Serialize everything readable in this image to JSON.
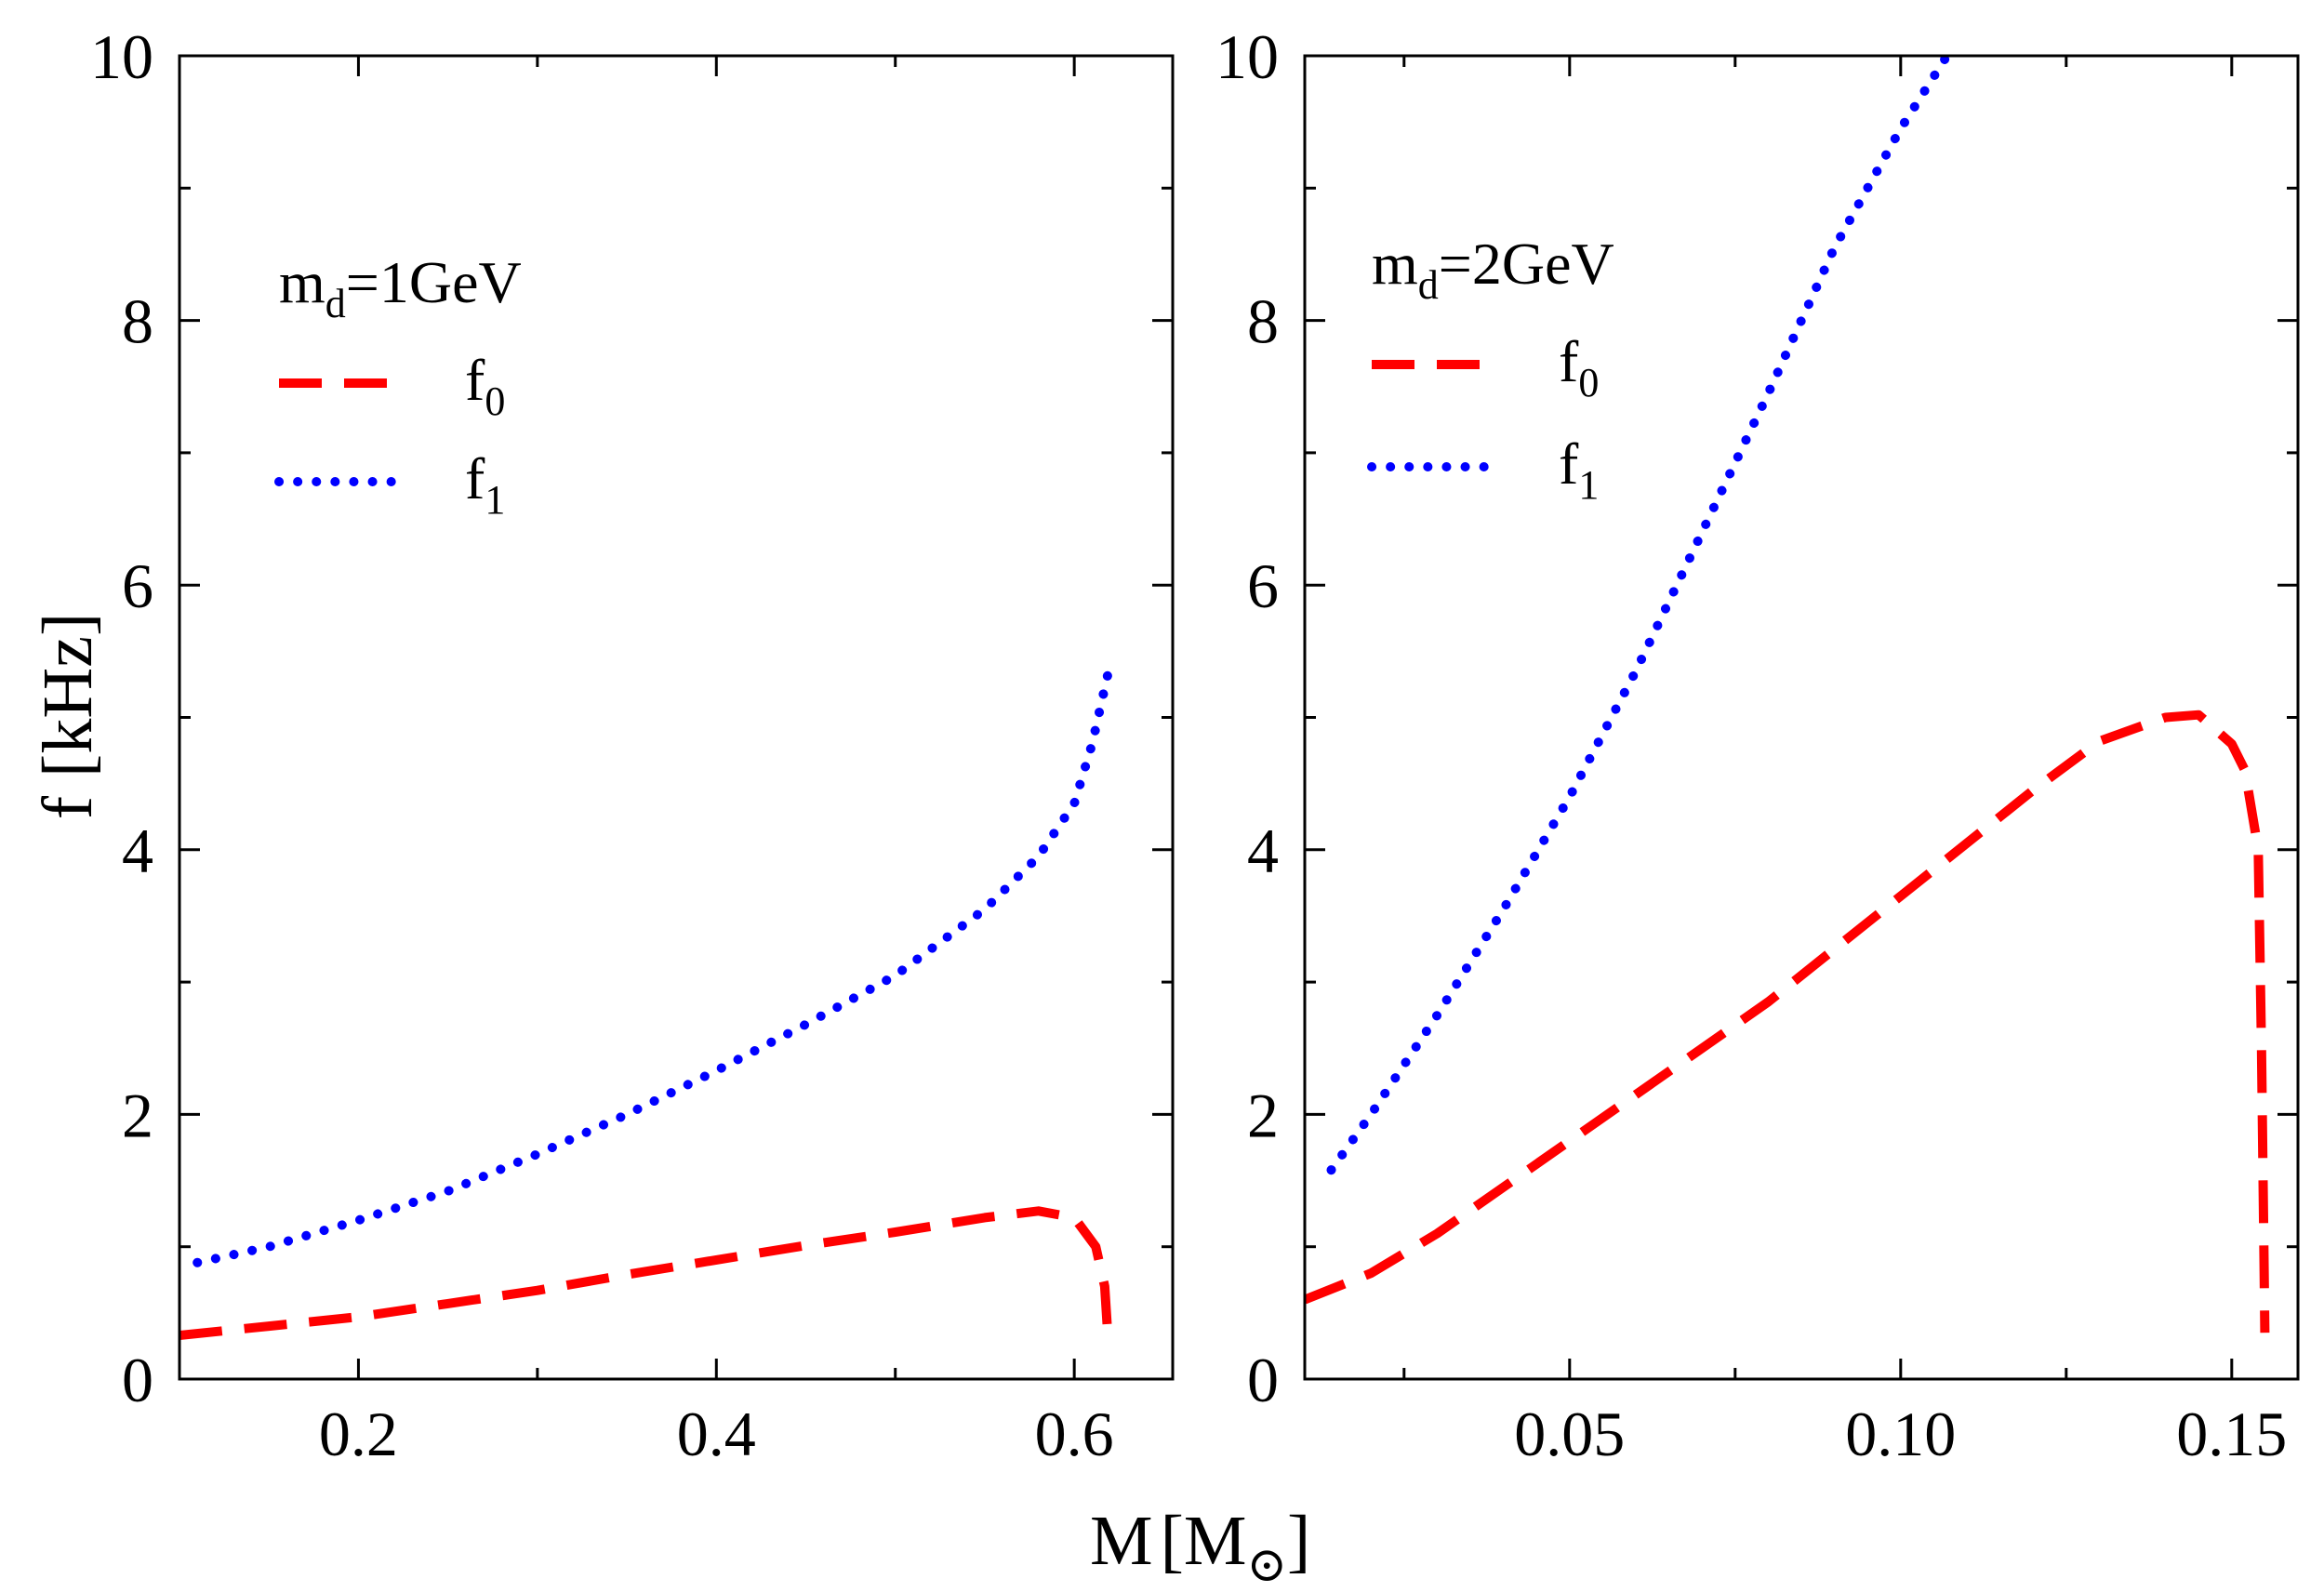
{
  "figure": {
    "xlabel_main": "M",
    "xlabel_unit": "M",
    "xlabel_unit_sub": "⊙",
    "ylabel_main": "f",
    "ylabel_unit": "[kHz]"
  },
  "chart_data": [
    {
      "type": "line",
      "panel": "left",
      "annotation_main": "m",
      "annotation_sub": "d",
      "annotation_rest": "=1GeV",
      "xlabel": "M[M⊙]",
      "ylabel": "f [kHz]",
      "xlim": [
        0.1,
        0.655
      ],
      "ylim": [
        0,
        10
      ],
      "xticks": [
        0.2,
        0.4,
        0.6
      ],
      "xtick_labels": [
        "0.2",
        "0.4",
        "0.6"
      ],
      "xminor": [
        0.1,
        0.3,
        0.5
      ],
      "yticks": [
        0,
        2,
        4,
        6,
        8,
        10
      ],
      "ytick_labels": [
        "0",
        "2",
        "4",
        "6",
        "8",
        "10"
      ],
      "yminor": [
        1,
        3,
        5,
        7,
        9
      ],
      "legend": [
        {
          "main": "f",
          "sub": "0",
          "style": "dashed",
          "color": "#ff0000"
        },
        {
          "main": "f",
          "sub": "1",
          "style": "dotted",
          "color": "#0000ff"
        }
      ],
      "series": [
        {
          "name": "f0",
          "color": "#ff0000",
          "style": "dashed",
          "x": [
            0.1,
            0.15,
            0.2,
            0.25,
            0.3,
            0.35,
            0.4,
            0.45,
            0.5,
            0.55,
            0.58,
            0.6,
            0.612,
            0.617,
            0.619
          ],
          "y": [
            0.33,
            0.4,
            0.47,
            0.57,
            0.67,
            0.79,
            0.9,
            1.01,
            1.11,
            1.22,
            1.27,
            1.22,
            1.0,
            0.7,
            0.28
          ]
        },
        {
          "name": "f1",
          "color": "#0000ff",
          "style": "dotted",
          "x": [
            0.11,
            0.15,
            0.2,
            0.25,
            0.3,
            0.35,
            0.4,
            0.45,
            0.5,
            0.55,
            0.58,
            0.6,
            0.61,
            0.62
          ],
          "y": [
            0.88,
            1.0,
            1.2,
            1.42,
            1.7,
            2.0,
            2.33,
            2.68,
            3.05,
            3.55,
            3.95,
            4.35,
            4.8,
            5.4
          ]
        }
      ]
    },
    {
      "type": "line",
      "panel": "right",
      "annotation_main": "m",
      "annotation_sub": "d",
      "annotation_rest": "=2GeV",
      "xlabel": "M[M⊙]",
      "ylabel": "f [kHz]",
      "xlim": [
        0.01,
        0.16
      ],
      "ylim": [
        0,
        10
      ],
      "xticks": [
        0.05,
        0.1,
        0.15
      ],
      "xtick_labels": [
        "0.05",
        "0.10",
        "0.15"
      ],
      "xminor": [
        0.025,
        0.075,
        0.125
      ],
      "yticks": [
        0,
        2,
        4,
        6,
        8,
        10
      ],
      "ytick_labels": [
        "0",
        "2",
        "4",
        "6",
        "8",
        "10"
      ],
      "yminor": [
        1,
        3,
        5,
        7,
        9
      ],
      "legend": [
        {
          "main": "f",
          "sub": "0",
          "style": "dashed",
          "color": "#ff0000"
        },
        {
          "main": "f",
          "sub": "1",
          "style": "dotted",
          "color": "#0000ff"
        }
      ],
      "series": [
        {
          "name": "f0",
          "color": "#ff0000",
          "style": "dashed",
          "x": [
            0.01,
            0.02,
            0.03,
            0.04,
            0.05,
            0.06,
            0.07,
            0.08,
            0.09,
            0.1,
            0.11,
            0.12,
            0.13,
            0.14,
            0.145,
            0.15,
            0.152,
            0.154,
            0.1545,
            0.1548,
            0.155
          ],
          "y": [
            0.6,
            0.8,
            1.1,
            1.45,
            1.8,
            2.15,
            2.5,
            2.85,
            3.25,
            3.65,
            4.05,
            4.45,
            4.82,
            5.0,
            5.02,
            4.8,
            4.6,
            4.0,
            2.5,
            1.2,
            0.35
          ]
        },
        {
          "name": "f1",
          "color": "#0000ff",
          "style": "dotted",
          "x": [
            0.014,
            0.02,
            0.03,
            0.04,
            0.05,
            0.06,
            0.07,
            0.08,
            0.09,
            0.1,
            0.107
          ],
          "y": [
            1.58,
            2.0,
            2.75,
            3.55,
            4.4,
            5.35,
            6.4,
            7.45,
            8.55,
            9.45,
            10.0
          ]
        }
      ]
    }
  ]
}
